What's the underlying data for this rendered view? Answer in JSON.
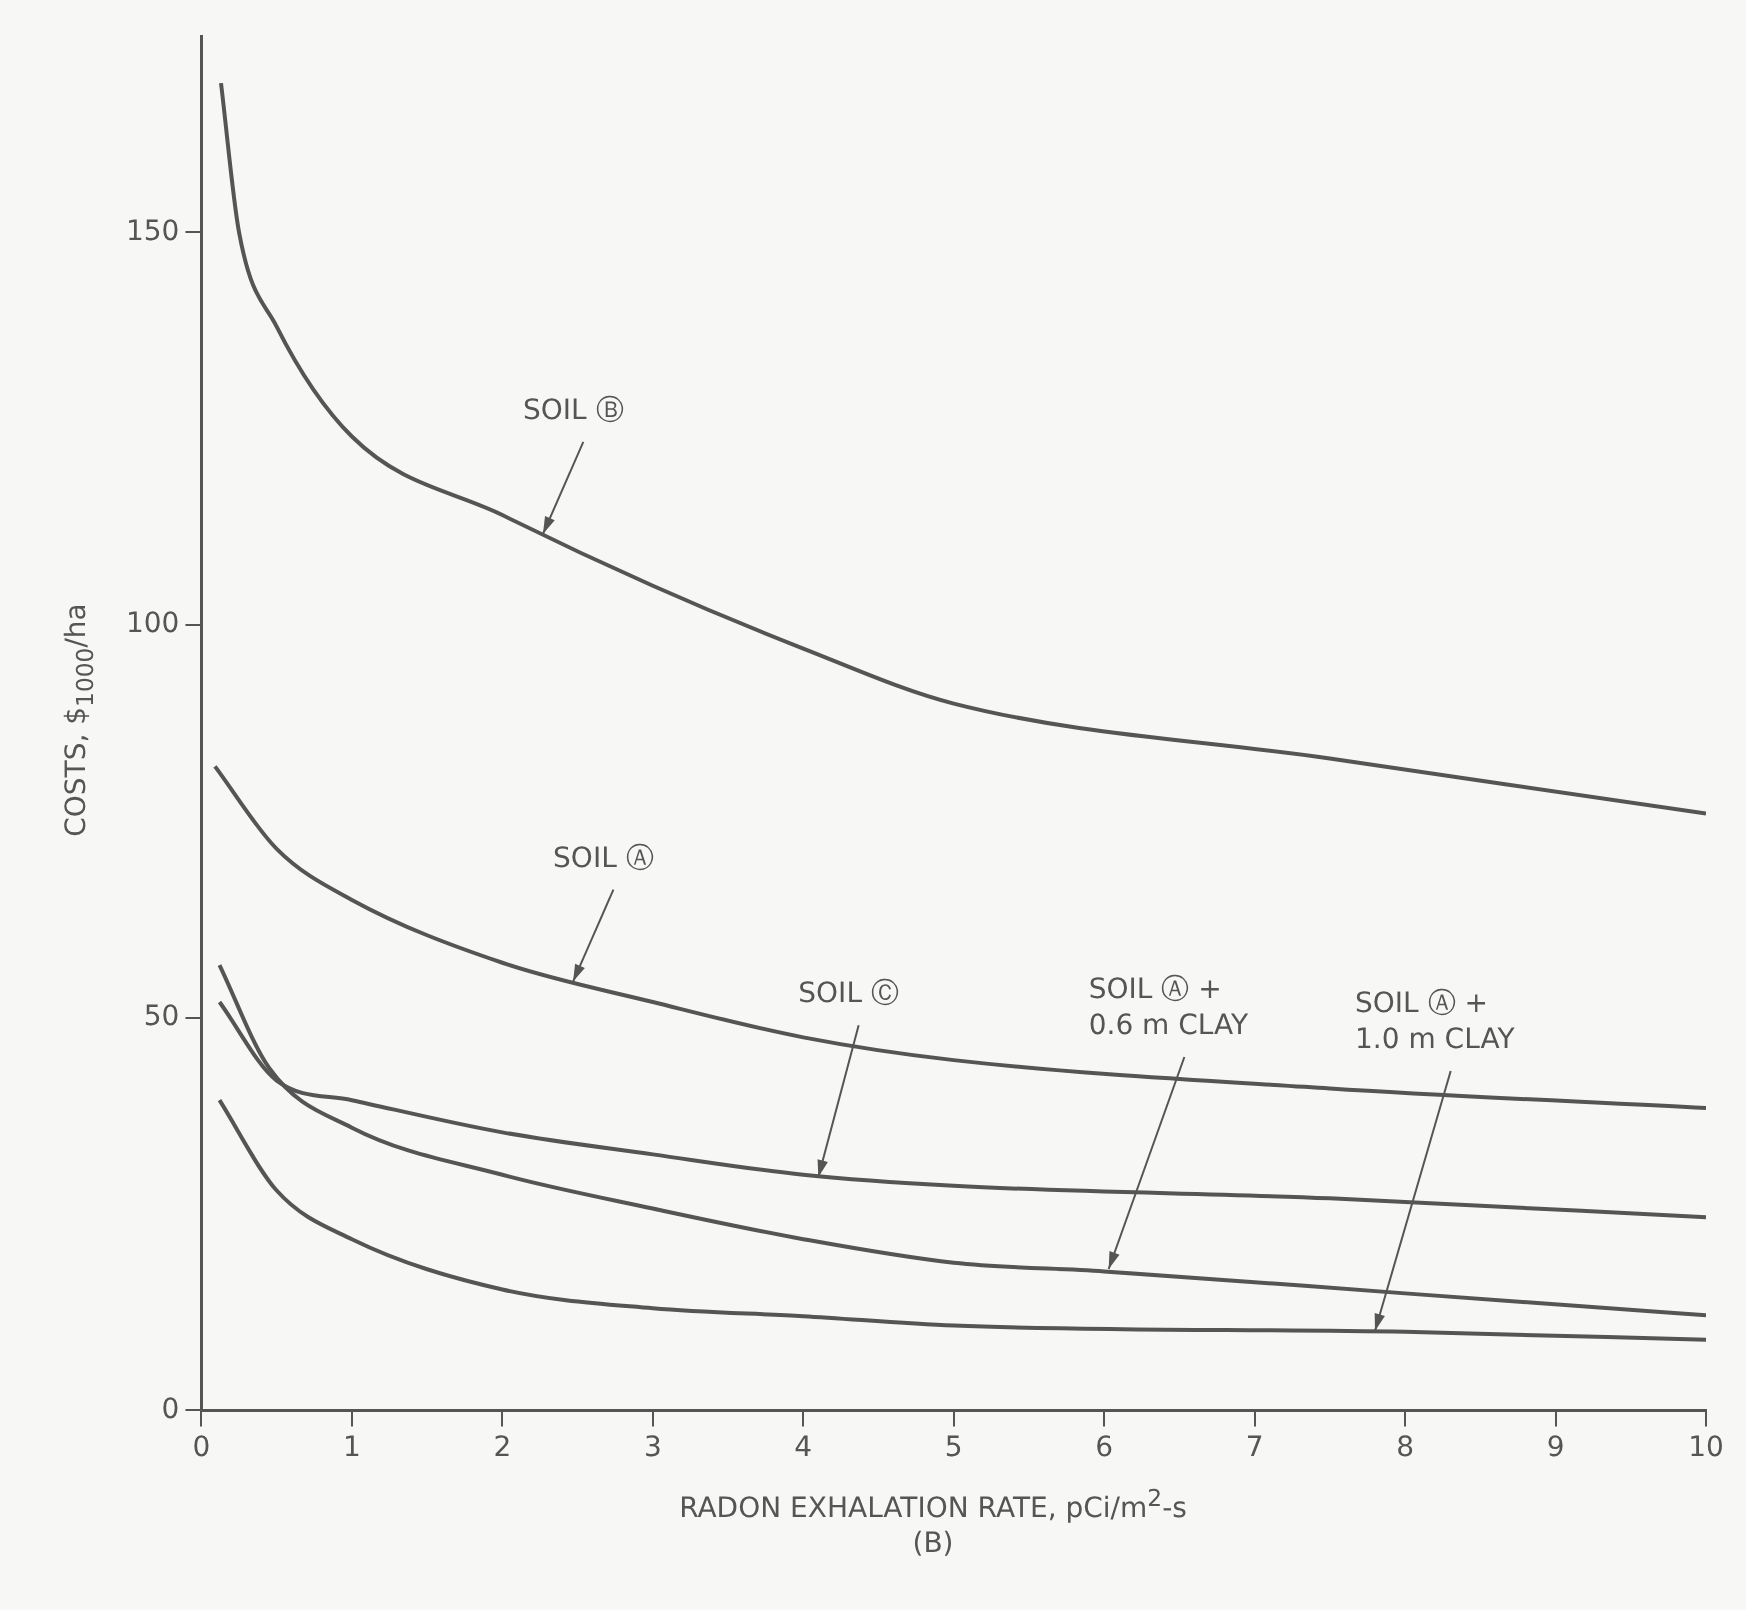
{
  "chart_data": {
    "type": "line",
    "xlabel": "RADON EXHALATION RATE, pCi/m$^{2}$-s",
    "ylabel": "COSTS, $$_{1000}$/ha",
    "xlim": [
      0,
      10
    ],
    "xticks": [
      0,
      1,
      2,
      3,
      4,
      5,
      6,
      7,
      8,
      9,
      10
    ],
    "ylim": [
      0,
      175
    ],
    "yticks": [
      0,
      50,
      100,
      150
    ],
    "grid": false,
    "legend": false,
    "marker": "none",
    "line_style": "solid",
    "series": [
      {
        "color": "#555555",
        "x": [
          0.13,
          0.25,
          0.5,
          1,
          2,
          3,
          4,
          5,
          7.5,
          10
        ],
        "values": [
          169,
          150,
          138,
          124,
          114,
          105,
          97,
          90,
          83,
          76
        ]
      },
      {
        "color": "#555555",
        "x": [
          0.09,
          0.5,
          1,
          2,
          3,
          4,
          5,
          7.5,
          10
        ],
        "values": [
          82,
          71.5,
          65,
          57,
          52,
          47.5,
          44.6,
          41,
          38.5
        ]
      },
      {
        "color": "#555555",
        "x": [
          0.12,
          0.5,
          1,
          2,
          3,
          4,
          5,
          7.5,
          10
        ],
        "values": [
          52,
          42,
          39.5,
          35.4,
          32.6,
          30,
          28.6,
          27,
          24.6
        ]
      },
      {
        "color": "#555555",
        "x": [
          0.12,
          0.45,
          1,
          2,
          3,
          4,
          5,
          6,
          8,
          10
        ],
        "values": [
          56.7,
          43.6,
          36,
          30,
          25.7,
          21.8,
          18.8,
          17.7,
          14.9,
          12.1
        ]
      },
      {
        "color": "#555555",
        "x": [
          0.12,
          0.5,
          1,
          2,
          3,
          4,
          5,
          8,
          10
        ],
        "values": [
          39.5,
          28,
          21.8,
          15.4,
          13,
          12,
          10.8,
          10,
          9
        ]
      }
    ],
    "annotations": [
      {
        "text": "SOIL Ⓑ",
        "x": 2.27,
        "y": 111.6
      },
      {
        "text": "SOIL Ⓐ",
        "x": 2.47,
        "y": 54.6
      },
      {
        "text": "SOIL Ⓒ",
        "x": 4.1,
        "y": 29.7
      },
      {
        "text": "SOIL Ⓐ +\n0.6 m CLAY",
        "x": 6.03,
        "y": 18
      },
      {
        "text": "SOIL Ⓐ +\n1.0 m CLAY",
        "x": 7.8,
        "y": 10.1
      },
      "(B)"
    ]
  }
}
